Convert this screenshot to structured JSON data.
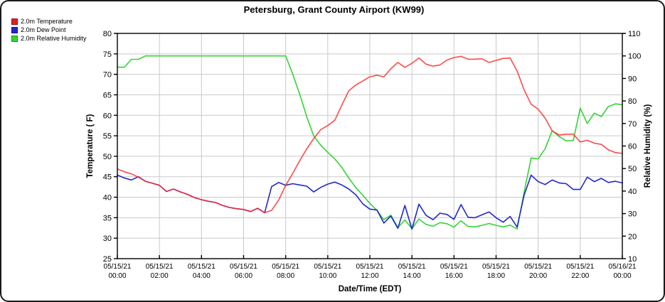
{
  "title": "Petersburg, Grant County Airport (KW99)",
  "legend": [
    {
      "label": "2.0m Temperature",
      "color": "#e02020"
    },
    {
      "label": "2.0m Dew Point",
      "color": "#2228cc"
    },
    {
      "label": "2.0m Relative Humidity",
      "color": "#35d435"
    }
  ],
  "colors": {
    "temperature": "#ff2a2a",
    "dew_point": "#2228cc",
    "relative_humidity": "#35d435",
    "grid": "#c9c9c9",
    "axis": "#000000"
  },
  "chart_data": {
    "type": "line",
    "title": "Petersburg, Grant County Airport (KW99)",
    "xlabel": "Date/Time (EDT)",
    "grid": true,
    "legend_position": "top-left",
    "y_left": {
      "label": "Temperature ( F)",
      "min": 25,
      "max": 80,
      "tick_step": 5,
      "ticks": [
        25,
        30,
        35,
        40,
        45,
        50,
        55,
        60,
        65,
        70,
        75,
        80
      ]
    },
    "y_right": {
      "label": "Relative Humidity (%)",
      "min": 10,
      "max": 110,
      "tick_step": 10,
      "ticks": [
        10,
        20,
        30,
        40,
        50,
        60,
        70,
        80,
        90,
        100,
        110
      ]
    },
    "x_axis": {
      "hours_min": 0,
      "hours_max": 24,
      "tick_step_hours": 2,
      "samples_per_hour": 3,
      "tick_labels": [
        {
          "date": "05/15/21",
          "time": "00:00"
        },
        {
          "date": "05/15/21",
          "time": "02:00"
        },
        {
          "date": "05/15/21",
          "time": "04:00"
        },
        {
          "date": "05/15/21",
          "time": "06:00"
        },
        {
          "date": "05/15/21",
          "time": "08:00"
        },
        {
          "date": "05/15/21",
          "time": "10:00"
        },
        {
          "date": "05/15/21",
          "time": "12:00"
        },
        {
          "date": "05/15/21",
          "time": "14:00"
        },
        {
          "date": "05/15/21",
          "time": "16:00"
        },
        {
          "date": "05/15/21",
          "time": "18:00"
        },
        {
          "date": "05/15/21",
          "time": "20:00"
        },
        {
          "date": "05/15/21",
          "time": "22:00"
        },
        {
          "date": "05/16/21",
          "time": "00:00"
        }
      ]
    },
    "series": [
      {
        "name": "2.0m Temperature",
        "axis": "left",
        "color": "#ff2a2a",
        "opacity": 0.85,
        "values": [
          46.9,
          46.2,
          45.7,
          44.9,
          43.9,
          43.4,
          42.9,
          41.4,
          42.0,
          41.3,
          40.7,
          39.9,
          39.4,
          39.0,
          38.7,
          38.0,
          37.5,
          37.2,
          37.0,
          36.5,
          37.3,
          36.2,
          36.8,
          39.3,
          42.9,
          45.8,
          48.9,
          51.8,
          54.3,
          56.5,
          57.5,
          58.8,
          62.5,
          66.0,
          67.4,
          68.4,
          69.4,
          69.8,
          69.4,
          71.4,
          72.9,
          71.7,
          72.7,
          74.0,
          72.5,
          72.0,
          72.3,
          73.5,
          74.1,
          74.4,
          73.7,
          73.7,
          73.8,
          72.9,
          73.4,
          73.9,
          74.0,
          70.8,
          66.2,
          62.7,
          61.5,
          59.3,
          56.2,
          55.2,
          55.4,
          55.4,
          53.5,
          53.9,
          53.2,
          52.9,
          51.6,
          50.9,
          50.7
        ]
      },
      {
        "name": "2.0m Dew Point",
        "axis": "left",
        "color": "#2228cc",
        "opacity": 1,
        "values": [
          45.4,
          44.7,
          44.2,
          45.0,
          43.9,
          43.4,
          42.9,
          41.4,
          42.0,
          41.3,
          40.7,
          39.9,
          39.4,
          39.0,
          38.7,
          38.0,
          37.5,
          37.2,
          37.0,
          36.5,
          37.3,
          36.2,
          42.6,
          43.6,
          42.9,
          43.3,
          43.0,
          42.7,
          41.3,
          42.4,
          43.2,
          43.7,
          43.0,
          42.0,
          40.6,
          38.4,
          37.1,
          36.9,
          33.7,
          35.4,
          32.4,
          38.0,
          32.2,
          38.3,
          35.6,
          34.5,
          36.1,
          35.8,
          34.6,
          38.2,
          35.1,
          35.0,
          35.7,
          36.4,
          35.0,
          33.9,
          35.3,
          32.7,
          40.5,
          45.4,
          43.8,
          43.1,
          44.2,
          43.5,
          43.3,
          41.9,
          41.9,
          44.9,
          43.8,
          44.6,
          43.6,
          43.9,
          43.5
        ]
      },
      {
        "name": "2.0m Relative Humidity",
        "axis": "right",
        "color": "#35d435",
        "opacity": 1,
        "values": [
          95,
          95,
          98.5,
          98.5,
          100,
          100,
          100,
          100,
          100,
          100,
          100,
          100,
          100,
          100,
          100,
          100,
          100,
          100,
          100,
          100,
          100,
          100,
          100,
          100,
          100,
          92,
          83,
          73,
          64.5,
          60.3,
          57.2,
          54.3,
          50.5,
          45.8,
          41.5,
          38.2,
          34.5,
          31.5,
          27.3,
          29.3,
          23.8,
          27.2,
          23.3,
          27.6,
          25.2,
          24.4,
          26.0,
          25.5,
          24.0,
          26.8,
          24.3,
          24.1,
          24.8,
          25.6,
          24.8,
          24.1,
          24.9,
          23.2,
          39.5,
          54.7,
          54.3,
          58.8,
          66.8,
          64.2,
          62.3,
          62.4,
          76.8,
          70.0,
          74.6,
          73.1,
          77.5,
          78.7,
          78.4
        ]
      }
    ]
  }
}
